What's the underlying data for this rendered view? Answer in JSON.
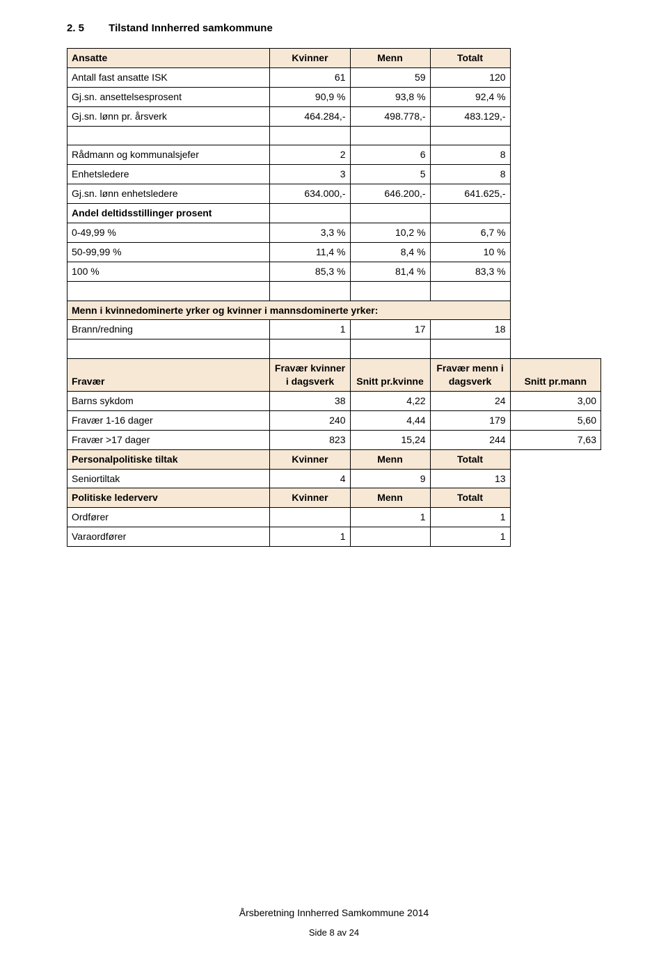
{
  "heading": {
    "number": "2. 5",
    "title": "Tilstand Innherred samkommune"
  },
  "colors": {
    "header_bg": "#f7e8d5",
    "border": "#000000",
    "background": "#ffffff"
  },
  "table": {
    "columns": {
      "main": [
        {
          "width_pct": 38
        },
        {
          "width_pct": 15,
          "align": "right"
        },
        {
          "width_pct": 15,
          "align": "right"
        },
        {
          "width_pct": 15,
          "align": "right"
        },
        {
          "width_pct": 17,
          "align": "right"
        }
      ]
    },
    "rows": [
      {
        "type": "hdr4",
        "cells": [
          "Ansatte",
          "Kvinner",
          "Menn",
          "Totalt"
        ]
      },
      {
        "type": "data4",
        "cells": [
          "Antall fast ansatte ISK",
          "61",
          "59",
          "120"
        ]
      },
      {
        "type": "data4",
        "cells": [
          "Gj.sn. ansettelsesprosent",
          "90,9 %",
          "93,8 %",
          "92,4 %"
        ]
      },
      {
        "type": "data4",
        "cells": [
          "Gj.sn. lønn pr. årsverk",
          "464.284,-",
          "498.778,-",
          "483.129,-"
        ]
      },
      {
        "type": "blank4"
      },
      {
        "type": "data4",
        "cells": [
          "Rådmann og kommunalsjefer",
          "2",
          "6",
          "8"
        ]
      },
      {
        "type": "data4",
        "cells": [
          "Enhetsledere",
          "3",
          "5",
          "8"
        ]
      },
      {
        "type": "data4",
        "cells": [
          "Gj.sn. lønn enhetsledere",
          "634.000,-",
          "646.200,-",
          "641.625,-"
        ]
      },
      {
        "type": "label4",
        "cells": [
          "Andel deltidsstillinger prosent",
          "",
          "",
          ""
        ]
      },
      {
        "type": "data4",
        "cells": [
          "0-49,99 %",
          "3,3 %",
          "10,2 %",
          "6,7 %"
        ]
      },
      {
        "type": "data4",
        "cells": [
          "50-99,99 %",
          "11,4 %",
          "8,4 %",
          "10 %"
        ]
      },
      {
        "type": "data4",
        "cells": [
          "100 %",
          "85,3 %",
          "81,4 %",
          "83,3 %"
        ]
      },
      {
        "type": "blank4"
      },
      {
        "type": "hdr_span4",
        "cells": [
          "Menn i kvinnedominerte yrker og kvinner i mannsdominerte yrker:"
        ]
      },
      {
        "type": "data4",
        "cells": [
          "Brann/redning",
          "1",
          "17",
          "18"
        ]
      },
      {
        "type": "blank4"
      },
      {
        "type": "hdr5",
        "cells": [
          "Fravær",
          "Fravær kvinner i dagsverk",
          "Snitt pr.kvinne",
          "Fravær menn i dagsverk",
          "Snitt pr.mann"
        ]
      },
      {
        "type": "data5",
        "cells": [
          "Barns sykdom",
          "38",
          "4,22",
          "24",
          "3,00"
        ]
      },
      {
        "type": "data5",
        "cells": [
          "Fravær 1-16 dager",
          "240",
          "4,44",
          "179",
          "5,60"
        ]
      },
      {
        "type": "data5",
        "cells": [
          "Fravær >17 dager",
          "823",
          "15,24",
          "244",
          "7,63"
        ]
      },
      {
        "type": "hdr4",
        "cells": [
          "Personalpolitiske tiltak",
          "Kvinner",
          "Menn",
          "Totalt"
        ]
      },
      {
        "type": "data4",
        "cells": [
          "Seniortiltak",
          "4",
          "9",
          "13"
        ]
      },
      {
        "type": "hdr4",
        "cells": [
          "Politiske lederverv",
          "Kvinner",
          "Menn",
          "Totalt"
        ]
      },
      {
        "type": "data4",
        "cells": [
          "Ordfører",
          "",
          "1",
          "1"
        ]
      },
      {
        "type": "data4",
        "cells": [
          "Varaordfører",
          "1",
          "",
          "1"
        ]
      }
    ]
  },
  "footer": {
    "doc_title": "Årsberetning Innherred Samkommune 2014",
    "page_label": "Side 8 av 24"
  }
}
